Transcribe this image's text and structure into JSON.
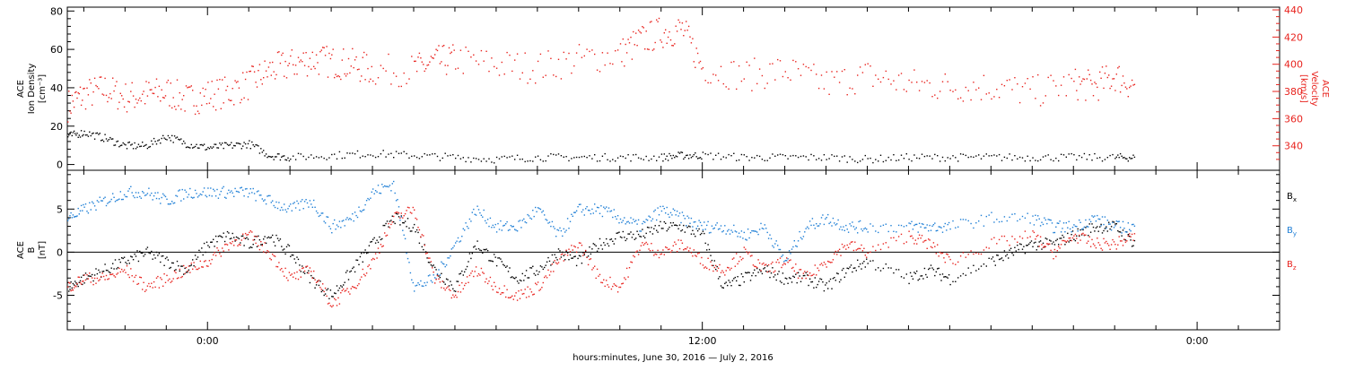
{
  "chart_data": [
    {
      "type": "scatter",
      "title": "",
      "xlabel": "hours:minutes, June 30, 2016 — July  2, 2016",
      "ylabel": "ACE Ion Density [cm^-3]",
      "ylabel_lines": [
        "ACE",
        "Ion Density",
        "[cm⁻³]"
      ],
      "ylim": [
        -3,
        82
      ],
      "yticks": [
        0,
        20,
        40,
        60,
        80
      ],
      "ylabel_right": "ACE Velocity [km/s]",
      "ylabel_right_lines": [
        "ACE",
        "Velocity",
        "[km/s]"
      ],
      "ylim_right": [
        322,
        442
      ],
      "yticks_right": [
        340,
        360,
        380,
        400,
        420,
        440
      ],
      "xlim_hours": [
        -3.4,
        26.0
      ],
      "xtick_labels": [
        {
          "label": "0:00",
          "hour": 0
        },
        {
          "label": "12:00",
          "hour": 12
        },
        {
          "label": "0:00",
          "hour": 24
        }
      ],
      "series": [
        {
          "name": "",
          "axis": "left",
          "color": "#000000",
          "points": [
            [
              -3.4,
              15
            ],
            [
              -3,
              17
            ],
            [
              -2.5,
              14
            ],
            [
              -2,
              10
            ],
            [
              -1.5,
              10
            ],
            [
              -1,
              15
            ],
            [
              -0.5,
              11
            ],
            [
              0,
              9
            ],
            [
              0.5,
              10
            ],
            [
              1,
              11
            ],
            [
              1.5,
              5
            ],
            [
              2,
              4
            ],
            [
              3,
              5
            ],
            [
              4,
              6
            ],
            [
              5,
              5
            ],
            [
              6,
              4
            ],
            [
              7,
              3
            ],
            [
              8,
              4
            ],
            [
              9,
              4
            ],
            [
              10,
              4
            ],
            [
              11,
              4
            ],
            [
              11.5,
              5
            ],
            [
              12,
              5
            ],
            [
              13,
              4
            ],
            [
              14,
              4
            ],
            [
              15,
              4
            ],
            [
              16,
              3
            ],
            [
              17,
              4
            ],
            [
              18,
              4
            ],
            [
              19,
              4
            ],
            [
              20,
              4
            ],
            [
              21,
              4
            ],
            [
              22,
              4
            ],
            [
              22.5,
              4
            ]
          ]
        },
        {
          "name": "",
          "axis": "right",
          "color": "#e8231e",
          "points": [
            [
              -3.4,
              370
            ],
            [
              -3,
              378
            ],
            [
              -2.5,
              382
            ],
            [
              -2,
              376
            ],
            [
              -1.5,
              378
            ],
            [
              -1,
              380
            ],
            [
              -0.5,
              374
            ],
            [
              0,
              378
            ],
            [
              0.5,
              380
            ],
            [
              1,
              386
            ],
            [
              1.5,
              396
            ],
            [
              2,
              400
            ],
            [
              2.5,
              404
            ],
            [
              3,
              402
            ],
            [
              3.5,
              400
            ],
            [
              4,
              396
            ],
            [
              5,
              396
            ],
            [
              5.5,
              402
            ],
            [
              6,
              404
            ],
            [
              7,
              400
            ],
            [
              8,
              398
            ],
            [
              9,
              404
            ],
            [
              10,
              408
            ],
            [
              10.5,
              418
            ],
            [
              11,
              424
            ],
            [
              11.5,
              426
            ],
            [
              12,
              398
            ],
            [
              13,
              392
            ],
            [
              14,
              396
            ],
            [
              15,
              386
            ],
            [
              16,
              392
            ],
            [
              17,
              386
            ],
            [
              18,
              384
            ],
            [
              19,
              384
            ],
            [
              20,
              380
            ],
            [
              21,
              386
            ],
            [
              21.5,
              384
            ],
            [
              22,
              392
            ],
            [
              22.5,
              384
            ]
          ]
        }
      ]
    },
    {
      "type": "scatter",
      "title": "",
      "xlabel": "hours:minutes, June 30, 2016 — July  2, 2016",
      "ylabel": "ACE B [nT]",
      "ylabel_lines": [
        "ACE",
        "B",
        "[nT]"
      ],
      "ylim": [
        -9,
        9.5
      ],
      "yticks": [
        -5,
        0,
        5
      ],
      "zero_line": true,
      "legend": "right",
      "xlim_hours": [
        -3.4,
        26.0
      ],
      "xtick_labels": [
        {
          "label": "0:00",
          "hour": 0
        },
        {
          "label": "12:00",
          "hour": 12
        },
        {
          "label": "0:00",
          "hour": 24
        }
      ],
      "series": [
        {
          "name": "Bx",
          "name_main": "B",
          "name_sub": "x",
          "color": "#000000",
          "points": [
            [
              -3.4,
              -4
            ],
            [
              -3,
              -3
            ],
            [
              -2.5,
              -2
            ],
            [
              -2,
              -1
            ],
            [
              -1.5,
              0
            ],
            [
              -1,
              -1
            ],
            [
              -0.5,
              -2
            ],
            [
              0,
              1
            ],
            [
              0.5,
              2
            ],
            [
              1,
              1
            ],
            [
              1.5,
              2
            ],
            [
              2,
              0
            ],
            [
              2.5,
              -3
            ],
            [
              3,
              -5
            ],
            [
              3.5,
              -2
            ],
            [
              4,
              1
            ],
            [
              4.5,
              4
            ],
            [
              5,
              3
            ],
            [
              5.5,
              -2
            ],
            [
              6,
              -4
            ],
            [
              6.5,
              1
            ],
            [
              7,
              -1
            ],
            [
              7.5,
              -3
            ],
            [
              8,
              -2
            ],
            [
              8.5,
              0
            ],
            [
              9,
              -1
            ],
            [
              9.5,
              1
            ],
            [
              10,
              2
            ],
            [
              10.5,
              2
            ],
            [
              11,
              3
            ],
            [
              11.5,
              3
            ],
            [
              12,
              2
            ],
            [
              12.5,
              -4
            ],
            [
              13,
              -3
            ],
            [
              13.5,
              -2
            ],
            [
              14,
              -3
            ],
            [
              14.5,
              -3
            ],
            [
              15,
              -4
            ],
            [
              15.5,
              -2
            ],
            [
              16,
              -1
            ],
            [
              17,
              -3
            ],
            [
              17.5,
              -2
            ],
            [
              18,
              -3
            ],
            [
              19,
              -1
            ],
            [
              19.5,
              0
            ],
            [
              20,
              1
            ],
            [
              20.5,
              1
            ],
            [
              21,
              2
            ],
            [
              21.5,
              3
            ],
            [
              22,
              3
            ],
            [
              22.5,
              1
            ]
          ]
        },
        {
          "name": "By",
          "name_main": "B",
          "name_sub": "y",
          "color": "#1f7fd6",
          "points": [
            [
              -3.4,
              4
            ],
            [
              -3,
              5
            ],
            [
              -2.5,
              6
            ],
            [
              -2,
              7
            ],
            [
              -1.5,
              7
            ],
            [
              -1,
              6
            ],
            [
              -0.5,
              7
            ],
            [
              0,
              7
            ],
            [
              0.5,
              7
            ],
            [
              1,
              7
            ],
            [
              1.5,
              6
            ],
            [
              2,
              5
            ],
            [
              2.5,
              6
            ],
            [
              3,
              3
            ],
            [
              3.5,
              4
            ],
            [
              4,
              7
            ],
            [
              4.5,
              8
            ],
            [
              5,
              -4
            ],
            [
              5.5,
              -3
            ],
            [
              6,
              1
            ],
            [
              6.5,
              5
            ],
            [
              7,
              3
            ],
            [
              7.5,
              3
            ],
            [
              8,
              5
            ],
            [
              8.5,
              2
            ],
            [
              9,
              5
            ],
            [
              9.5,
              5
            ],
            [
              10,
              4
            ],
            [
              10.5,
              3
            ],
            [
              11,
              5
            ],
            [
              11.5,
              4
            ],
            [
              12,
              3
            ],
            [
              12.5,
              3
            ],
            [
              13,
              2
            ],
            [
              13.5,
              3
            ],
            [
              14,
              -1
            ],
            [
              14.5,
              3
            ],
            [
              15,
              4
            ],
            [
              15.5,
              3
            ],
            [
              16,
              3
            ],
            [
              17,
              3
            ],
            [
              17.5,
              3
            ],
            [
              18,
              3
            ],
            [
              19,
              4
            ],
            [
              20,
              4
            ],
            [
              20.5,
              3
            ],
            [
              21,
              3
            ],
            [
              21.5,
              4
            ],
            [
              22,
              3
            ],
            [
              22.5,
              3
            ]
          ]
        },
        {
          "name": "Bz",
          "name_main": "B",
          "name_sub": "z",
          "color": "#e8231e",
          "points": [
            [
              -3.4,
              -4
            ],
            [
              -3,
              -3
            ],
            [
              -2.5,
              -3
            ],
            [
              -2,
              -2
            ],
            [
              -1.5,
              -4
            ],
            [
              -1,
              -3
            ],
            [
              -0.5,
              -2
            ],
            [
              0,
              -1
            ],
            [
              0.5,
              1
            ],
            [
              1,
              2
            ],
            [
              1.5,
              0
            ],
            [
              2,
              -3
            ],
            [
              2.5,
              -2
            ],
            [
              3,
              -6
            ],
            [
              3.5,
              -4
            ],
            [
              4,
              -1
            ],
            [
              4.5,
              4
            ],
            [
              5,
              5
            ],
            [
              5.5,
              -3
            ],
            [
              6,
              -5
            ],
            [
              6.5,
              -2
            ],
            [
              7,
              -4
            ],
            [
              7.5,
              -5
            ],
            [
              8,
              -4
            ],
            [
              8.5,
              -1
            ],
            [
              9,
              1
            ],
            [
              9.5,
              -3
            ],
            [
              10,
              -4
            ],
            [
              10.5,
              1
            ],
            [
              11,
              0
            ],
            [
              11.5,
              1
            ],
            [
              12,
              -1
            ],
            [
              12.5,
              -2
            ],
            [
              13,
              0
            ],
            [
              13.5,
              -2
            ],
            [
              14,
              -1
            ],
            [
              14.5,
              -3
            ],
            [
              15,
              -1
            ],
            [
              15.5,
              1
            ],
            [
              16,
              0
            ],
            [
              17,
              2
            ],
            [
              17.5,
              1
            ],
            [
              18,
              -1
            ],
            [
              19,
              1
            ],
            [
              20,
              2
            ],
            [
              20.5,
              0
            ],
            [
              21,
              2
            ],
            [
              21.5,
              1
            ],
            [
              22,
              1
            ],
            [
              22.5,
              2
            ]
          ]
        }
      ]
    }
  ]
}
